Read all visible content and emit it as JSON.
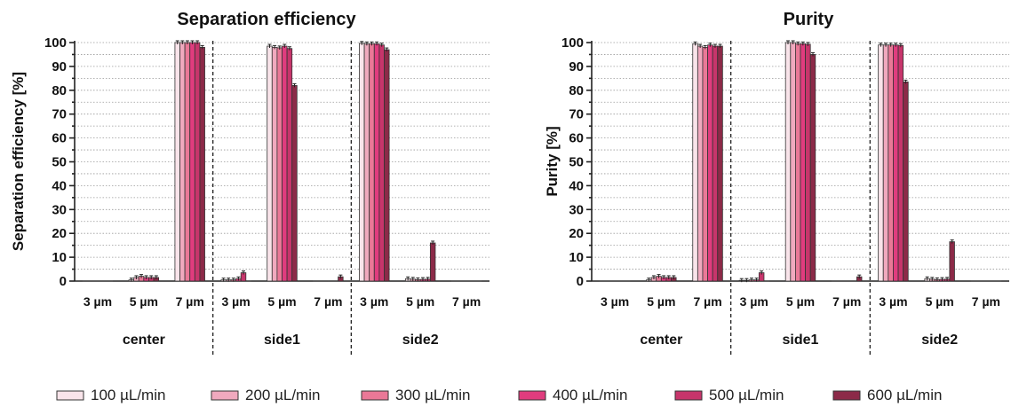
{
  "series_colors": [
    "#f9e4ea",
    "#f0a9be",
    "#ea7897",
    "#e03c7e",
    "#c7356b",
    "#8c2a48"
  ],
  "series_names": [
    "100 µL/min",
    "200 µL/min",
    "300 µL/min",
    "400 µL/min",
    "500 µL/min",
    "600 µL/min"
  ],
  "chart_data": [
    {
      "type": "bar",
      "title": "Separation efficiency",
      "ylabel": "Separation efficiency [%]",
      "ylim": [
        0,
        100
      ],
      "yticks": [
        0,
        10,
        20,
        30,
        40,
        50,
        60,
        70,
        80,
        90,
        100
      ],
      "grid": true,
      "groups": [
        "center",
        "side1",
        "side2"
      ],
      "categories": [
        "3 µm",
        "5 µm",
        "7 µm"
      ],
      "series": [
        {
          "name": "100 µL/min",
          "values": [
            [
              0,
              0.5,
              100
            ],
            [
              0.5,
              98.5,
              0
            ],
            [
              99.7,
              1,
              0
            ]
          ]
        },
        {
          "name": "200 µL/min",
          "values": [
            [
              0,
              1.5,
              100
            ],
            [
              0.5,
              98,
              0
            ],
            [
              99.5,
              0.8,
              0
            ]
          ]
        },
        {
          "name": "300 µL/min",
          "values": [
            [
              0,
              2,
              100
            ],
            [
              0.5,
              97.8,
              0
            ],
            [
              99.5,
              0.6,
              0
            ]
          ]
        },
        {
          "name": "400 µL/min",
          "values": [
            [
              0,
              1.5,
              100
            ],
            [
              1,
              98.5,
              0
            ],
            [
              99.5,
              0.7,
              0
            ]
          ]
        },
        {
          "name": "500 µL/min",
          "values": [
            [
              0,
              1.5,
              100
            ],
            [
              3.5,
              97.5,
              0
            ],
            [
              99,
              0.8,
              0
            ]
          ]
        },
        {
          "name": "600 µL/min",
          "values": [
            [
              0,
              1.5,
              98
            ],
            [
              0,
              82,
              1.8
            ],
            [
              97,
              16,
              0
            ]
          ]
        }
      ]
    },
    {
      "type": "bar",
      "title": "Purity",
      "ylabel": "Purity [%]",
      "ylim": [
        0,
        100
      ],
      "yticks": [
        0,
        10,
        20,
        30,
        40,
        50,
        60,
        70,
        80,
        90,
        100
      ],
      "grid": true,
      "groups": [
        "center",
        "side1",
        "side2"
      ],
      "categories": [
        "3 µm",
        "5 µm",
        "7 µm"
      ],
      "series": [
        {
          "name": "100 µL/min",
          "values": [
            [
              0,
              0.5,
              99.5
            ],
            [
              0.3,
              100,
              0
            ],
            [
              99,
              1,
              0
            ]
          ]
        },
        {
          "name": "200 µL/min",
          "values": [
            [
              0,
              1.5,
              98.5
            ],
            [
              0.3,
              100,
              0
            ],
            [
              99,
              0.8,
              0
            ]
          ]
        },
        {
          "name": "300 µL/min",
          "values": [
            [
              0,
              2,
              98
            ],
            [
              0.5,
              99.5,
              0
            ],
            [
              99,
              0.6,
              0
            ]
          ]
        },
        {
          "name": "400 µL/min",
          "values": [
            [
              0,
              1.5,
              99
            ],
            [
              0.5,
              99.5,
              0
            ],
            [
              99,
              0.7,
              0
            ]
          ]
        },
        {
          "name": "500 µL/min",
          "values": [
            [
              0,
              1.5,
              98.5
            ],
            [
              3.5,
              99.3,
              0
            ],
            [
              98.8,
              0.8,
              0
            ]
          ]
        },
        {
          "name": "600 µL/min",
          "values": [
            [
              0,
              1.5,
              98.5
            ],
            [
              0,
              95,
              1.8
            ],
            [
              83.5,
              16.5,
              0
            ]
          ]
        }
      ]
    }
  ]
}
